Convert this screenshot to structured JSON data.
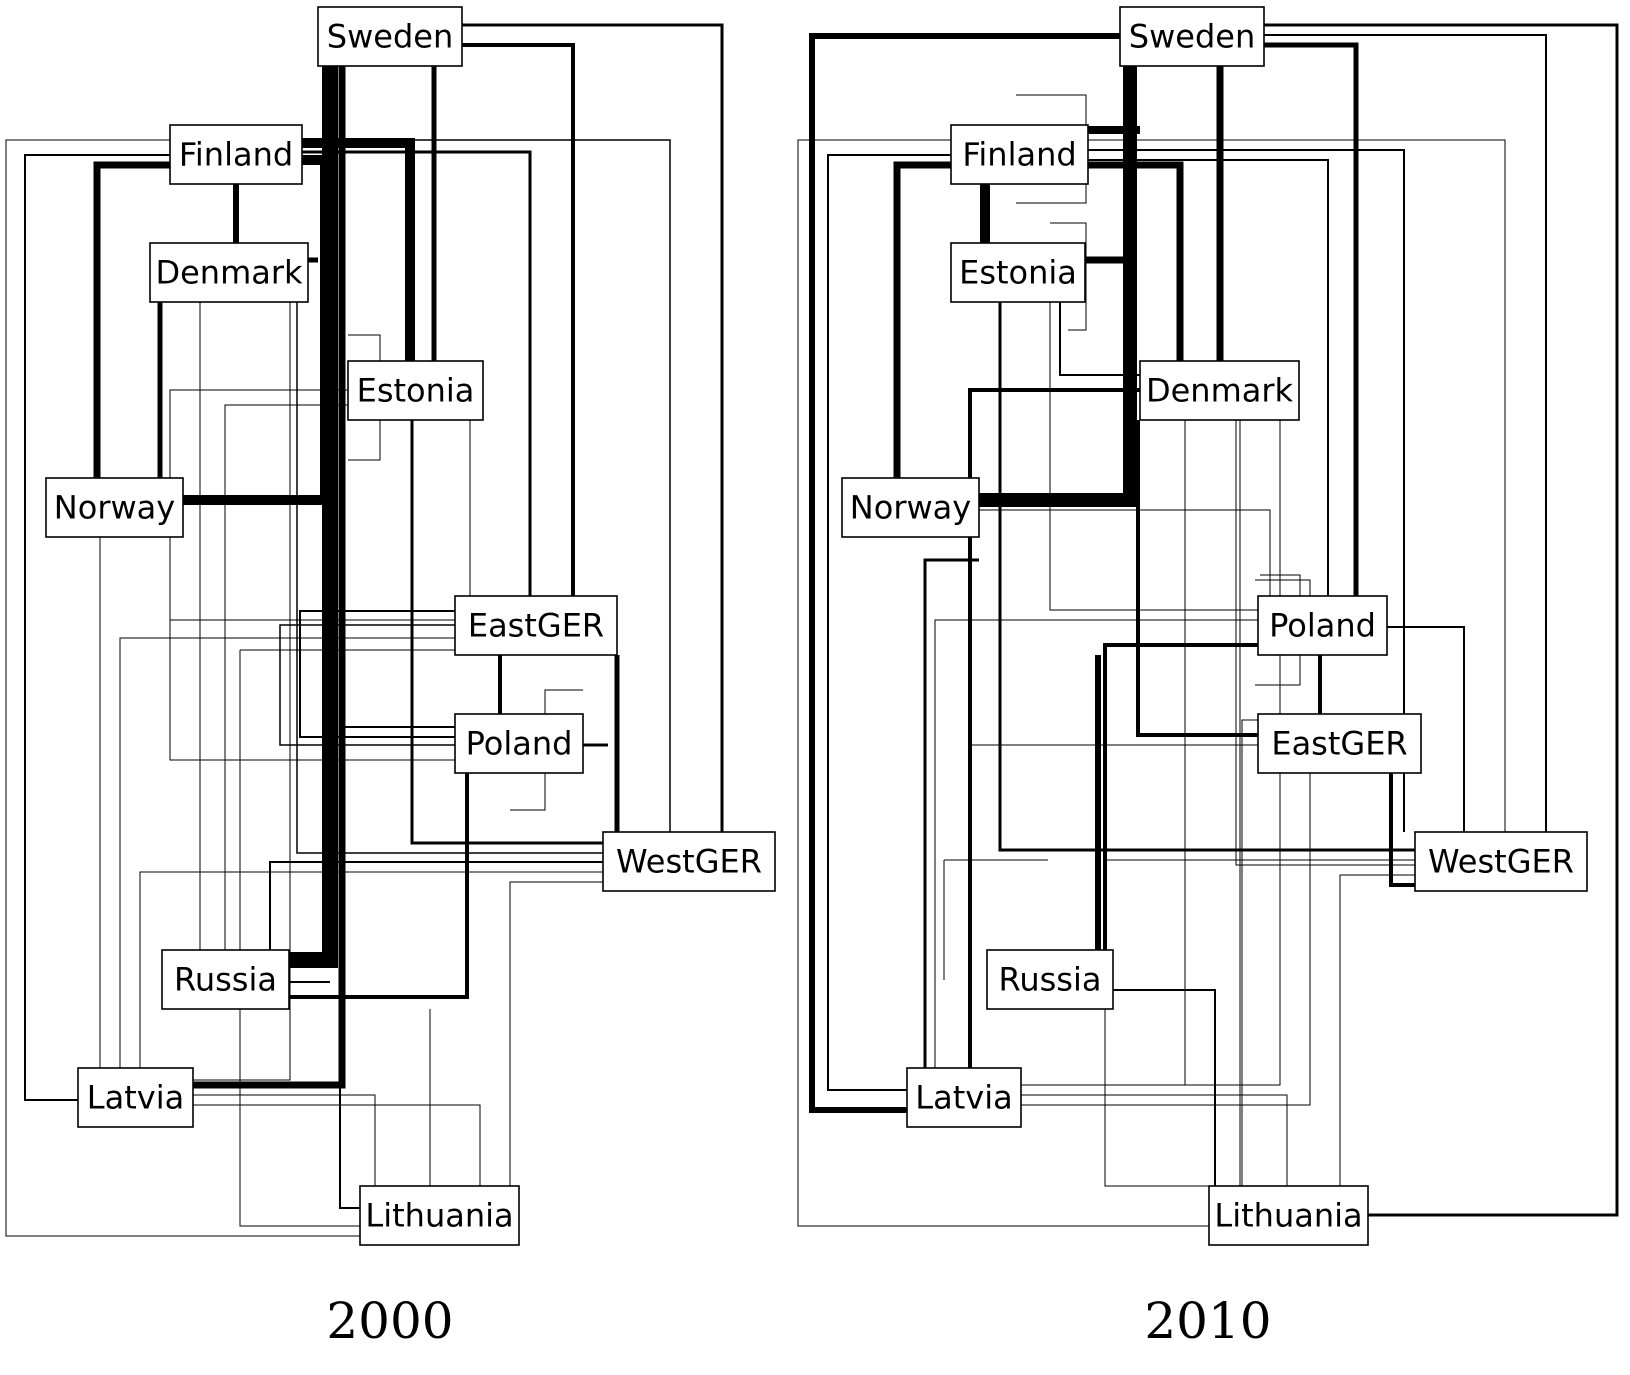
{
  "panels": [
    {
      "title": "2000",
      "nodes": [
        {
          "id": "sweden",
          "label": "Sweden"
        },
        {
          "id": "finland",
          "label": "Finland"
        },
        {
          "id": "denmark",
          "label": "Denmark"
        },
        {
          "id": "estonia",
          "label": "Estonia"
        },
        {
          "id": "norway",
          "label": "Norway"
        },
        {
          "id": "eastger",
          "label": "EastGER"
        },
        {
          "id": "poland",
          "label": "Poland"
        },
        {
          "id": "westger",
          "label": "WestGER"
        },
        {
          "id": "russia",
          "label": "Russia"
        },
        {
          "id": "latvia",
          "label": "Latvia"
        },
        {
          "id": "lithuania",
          "label": "Lithuania"
        }
      ]
    },
    {
      "title": "2010",
      "nodes": [
        {
          "id": "sweden",
          "label": "Sweden"
        },
        {
          "id": "finland",
          "label": "Finland"
        },
        {
          "id": "estonia",
          "label": "Estonia"
        },
        {
          "id": "denmark",
          "label": "Denmark"
        },
        {
          "id": "norway",
          "label": "Norway"
        },
        {
          "id": "poland",
          "label": "Poland"
        },
        {
          "id": "eastger",
          "label": "EastGER"
        },
        {
          "id": "westger",
          "label": "WestGER"
        },
        {
          "id": "russia",
          "label": "Russia"
        },
        {
          "id": "latvia",
          "label": "Latvia"
        },
        {
          "id": "lithuania",
          "label": "Lithuania"
        }
      ]
    }
  ]
}
